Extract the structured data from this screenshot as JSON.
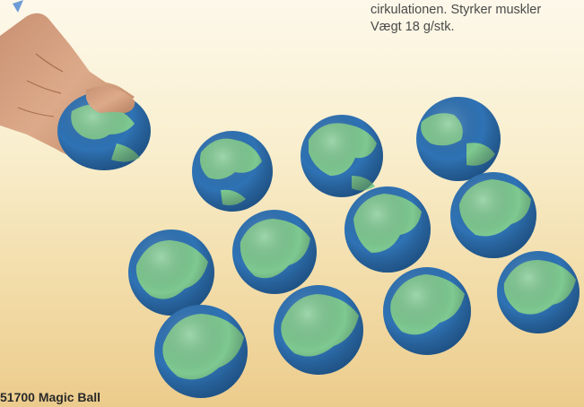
{
  "description": {
    "line1": "cirkulationen. Styrker muskler",
    "line2": "Vægt 18 g/stk."
  },
  "product": {
    "code_and_name": "51700 Magic Ball"
  },
  "colors": {
    "ocean": "#2f73b5",
    "land": "#7ec991",
    "skin": "#d9a585",
    "background_top": "#fdf8ea",
    "background_bottom": "#eccc8c"
  },
  "balls_count": 12
}
